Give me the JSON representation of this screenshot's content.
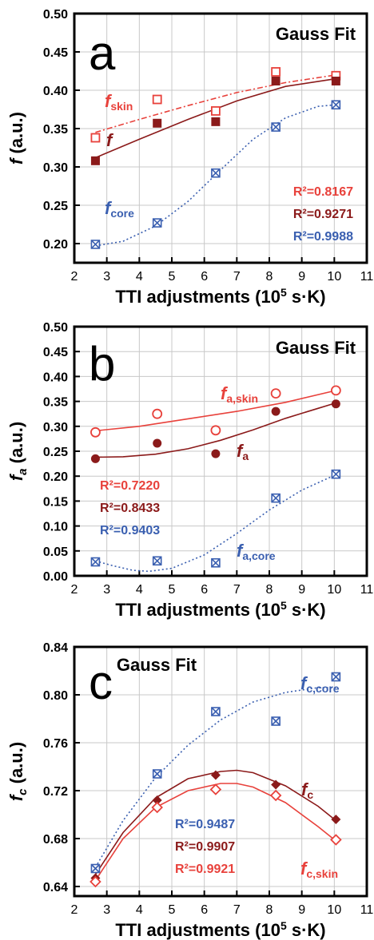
{
  "colors": {
    "skin": "#e8413b",
    "total": "#8b1a1a",
    "core": "#3a5fb0",
    "frame": "#000000",
    "grid": "#c8c8c8"
  },
  "chart_data": [
    {
      "type": "scatter",
      "panel_letter": "a",
      "fit_label": "Gauss Fit",
      "xlabel": "TTI adjustments (10⁵ s·K)",
      "ylabel": "f (a.u.)",
      "xlim": [
        2,
        11
      ],
      "ylim": [
        0.175,
        0.5
      ],
      "xticks": [
        "2",
        "3",
        "4",
        "5",
        "6",
        "7",
        "8",
        "9",
        "10",
        "11"
      ],
      "yticks": [
        "0.20",
        "0.25",
        "0.30",
        "0.35",
        "0.40",
        "0.45",
        "0.50"
      ],
      "grid": true,
      "series": [
        {
          "key": "skin",
          "name": "fskin",
          "marker": "open-square",
          "fit_style": "dashdot",
          "x": [
            2.65,
            4.55,
            6.35,
            8.2,
            10.05
          ],
          "y": [
            0.338,
            0.388,
            0.373,
            0.424,
            0.419
          ],
          "fit_x": [
            2.65,
            4.0,
            5.5,
            7.0,
            8.5,
            10.05
          ],
          "fit_y": [
            0.345,
            0.362,
            0.38,
            0.397,
            0.41,
            0.42
          ]
        },
        {
          "key": "total",
          "name": "f",
          "marker": "filled-square",
          "fit_style": "solid",
          "x": [
            2.65,
            4.55,
            6.35,
            8.2,
            10.05
          ],
          "y": [
            0.308,
            0.357,
            0.359,
            0.412,
            0.412
          ],
          "fit_x": [
            2.65,
            4.0,
            5.5,
            7.0,
            8.5,
            10.05
          ],
          "fit_y": [
            0.312,
            0.336,
            0.362,
            0.386,
            0.405,
            0.415
          ]
        },
        {
          "key": "core",
          "name": "fcore",
          "marker": "crossed-square",
          "fit_style": "dotted",
          "x": [
            2.65,
            4.55,
            6.35,
            8.2,
            10.05
          ],
          "y": [
            0.199,
            0.227,
            0.292,
            0.352,
            0.381
          ],
          "fit_x": [
            2.65,
            3.5,
            4.5,
            5.5,
            6.5,
            7.5,
            8.5,
            9.5,
            10.05
          ],
          "fit_y": [
            0.197,
            0.203,
            0.223,
            0.255,
            0.296,
            0.336,
            0.364,
            0.379,
            0.381
          ]
        }
      ],
      "labels": [
        {
          "series": "skin",
          "main": "f",
          "sub": "skin"
        },
        {
          "series": "total",
          "main": "f",
          "sub": ""
        },
        {
          "series": "core",
          "main": "f",
          "sub": "core"
        }
      ],
      "r2": [
        {
          "series": "skin",
          "text": "R²=0.8167"
        },
        {
          "series": "total",
          "text": "R²=0.9271"
        },
        {
          "series": "core",
          "text": "R²=0.9988"
        }
      ]
    },
    {
      "type": "scatter",
      "panel_letter": "b",
      "fit_label": "Gauss Fit",
      "xlabel": "TTI adjustments (10⁵ s·K)",
      "ylabel": "fa (a.u.)",
      "xlim": [
        2,
        11
      ],
      "ylim": [
        0,
        0.5
      ],
      "xticks": [
        "2",
        "3",
        "4",
        "5",
        "6",
        "7",
        "8",
        "9",
        "10",
        "11"
      ],
      "yticks": [
        "0.00",
        "0.05",
        "0.10",
        "0.15",
        "0.20",
        "0.25",
        "0.30",
        "0.35",
        "0.40",
        "0.45",
        "0.50"
      ],
      "grid": true,
      "series": [
        {
          "key": "skin",
          "name": "fa,skin",
          "marker": "open-circle",
          "fit_style": "solid",
          "x": [
            2.65,
            4.55,
            6.35,
            8.2,
            10.05
          ],
          "y": [
            0.288,
            0.325,
            0.292,
            0.366,
            0.372
          ],
          "fit_x": [
            2.65,
            4.0,
            5.5,
            7.0,
            8.5,
            10.05
          ],
          "fit_y": [
            0.291,
            0.3,
            0.315,
            0.33,
            0.348,
            0.372
          ]
        },
        {
          "key": "total",
          "name": "fa",
          "marker": "filled-circle",
          "fit_style": "solid",
          "x": [
            2.65,
            4.55,
            6.35,
            8.2,
            10.05
          ],
          "y": [
            0.235,
            0.266,
            0.245,
            0.33,
            0.345
          ],
          "fit_x": [
            2.65,
            3.5,
            4.5,
            5.5,
            6.5,
            7.5,
            8.5,
            9.5,
            10.05
          ],
          "fit_y": [
            0.238,
            0.239,
            0.244,
            0.255,
            0.272,
            0.293,
            0.316,
            0.336,
            0.347
          ]
        },
        {
          "key": "core",
          "name": "fa,core",
          "marker": "crossed-square",
          "fit_style": "dotted",
          "x": [
            2.65,
            4.55,
            6.35,
            8.2,
            10.05
          ],
          "y": [
            0.028,
            0.03,
            0.026,
            0.156,
            0.204
          ],
          "fit_x": [
            2.65,
            3.2,
            3.8,
            4.3,
            5.0,
            6.0,
            7.0,
            8.0,
            9.0,
            10.05
          ],
          "fit_y": [
            0.03,
            0.02,
            0.011,
            0.009,
            0.015,
            0.042,
            0.085,
            0.132,
            0.172,
            0.203
          ]
        }
      ],
      "labels": [
        {
          "series": "skin",
          "main": "f",
          "sub": "a,skin"
        },
        {
          "series": "total",
          "main": "f",
          "sub": "a"
        },
        {
          "series": "core",
          "main": "f",
          "sub": "a,core"
        }
      ],
      "r2": [
        {
          "series": "skin",
          "text": "R²=0.7220"
        },
        {
          "series": "total",
          "text": "R²=0.8433"
        },
        {
          "series": "core",
          "text": "R²=0.9403"
        }
      ]
    },
    {
      "type": "scatter",
      "panel_letter": "c",
      "fit_label": "Gauss Fit",
      "xlabel": "TTI adjustments (10⁵ s·K)",
      "ylabel": "fc (a.u.)",
      "xlim": [
        2,
        11
      ],
      "ylim": [
        0.632,
        0.84
      ],
      "xticks": [
        "2",
        "3",
        "4",
        "5",
        "6",
        "7",
        "8",
        "9",
        "10",
        "11"
      ],
      "yticks": [
        "0.64",
        "0.68",
        "0.72",
        "0.76",
        "0.80",
        "0.84"
      ],
      "grid": true,
      "series": [
        {
          "key": "core",
          "name": "fc,core",
          "marker": "crossed-square",
          "fit_style": "dotted",
          "x": [
            2.65,
            4.55,
            6.35,
            8.2,
            10.05
          ],
          "y": [
            0.655,
            0.734,
            0.786,
            0.778,
            0.815
          ],
          "fit_x": [
            2.65,
            3.5,
            4.5,
            5.5,
            6.5,
            7.5,
            8.5,
            9.5,
            10.05
          ],
          "fit_y": [
            0.656,
            0.695,
            0.731,
            0.758,
            0.779,
            0.794,
            0.802,
            0.806,
            0.806
          ]
        },
        {
          "key": "total",
          "name": "fc",
          "marker": "filled-diamond",
          "fit_style": "solid",
          "x": [
            2.65,
            4.55,
            6.35,
            8.2,
            10.05
          ],
          "y": [
            0.647,
            0.712,
            0.733,
            0.725,
            0.696
          ],
          "fit_x": [
            2.65,
            3.5,
            4.5,
            5.5,
            6.5,
            7.0,
            7.5,
            8.5,
            9.5,
            10.05
          ],
          "fit_y": [
            0.65,
            0.685,
            0.714,
            0.73,
            0.736,
            0.737,
            0.735,
            0.724,
            0.707,
            0.695
          ]
        },
        {
          "key": "skin",
          "name": "fc,skin",
          "marker": "open-diamond",
          "fit_style": "solid",
          "x": [
            2.65,
            4.55,
            6.35,
            8.2,
            10.05
          ],
          "y": [
            0.644,
            0.706,
            0.721,
            0.716,
            0.679
          ],
          "fit_x": [
            2.65,
            3.5,
            4.5,
            5.5,
            6.5,
            7.0,
            7.5,
            8.5,
            9.5,
            10.05
          ],
          "fit_y": [
            0.645,
            0.68,
            0.706,
            0.72,
            0.726,
            0.726,
            0.723,
            0.71,
            0.69,
            0.678
          ]
        }
      ],
      "labels": [
        {
          "series": "core",
          "main": "f",
          "sub": "c,core"
        },
        {
          "series": "total",
          "main": "f",
          "sub": "c"
        },
        {
          "series": "skin",
          "main": "f",
          "sub": "c,skin"
        }
      ],
      "r2": [
        {
          "series": "core",
          "text": "R²=0.9487"
        },
        {
          "series": "total",
          "text": "R²=0.9907"
        },
        {
          "series": "skin",
          "text": "R²=0.9921"
        }
      ]
    }
  ]
}
